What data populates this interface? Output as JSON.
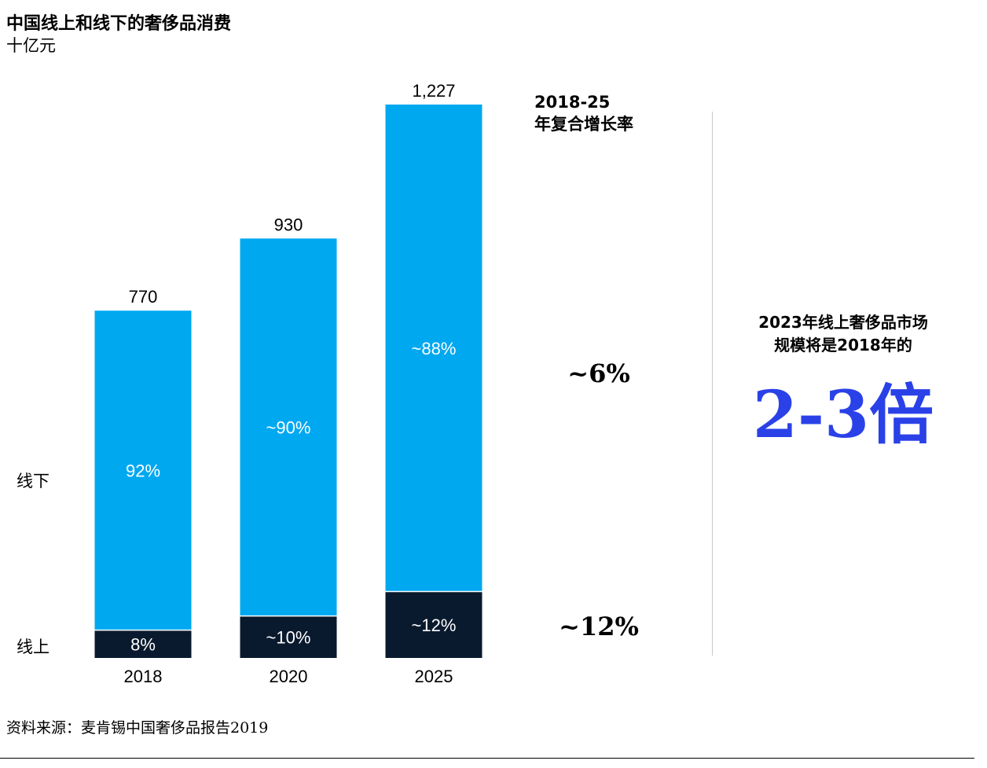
{
  "title": "中国线上和线下的奢侈品消费",
  "unit": "十亿元",
  "cagr": {
    "header_line1": "2018-25",
    "header_line2": "年复合增长率",
    "offline_value": "~6%",
    "online_value": "~12%"
  },
  "callout": {
    "line1": "2023年线上奢侈品市场",
    "line2": "规模将是2018年的",
    "big": "2-3倍",
    "color": "#2a41e8"
  },
  "source": "资料来源：麦肯锡中国奢侈品报告2019",
  "chart_data": {
    "type": "bar",
    "stacked": true,
    "categories": [
      "2018",
      "2020",
      "2025"
    ],
    "totals": [
      770,
      930,
      1227
    ],
    "total_labels": [
      "770",
      "930",
      "1,227"
    ],
    "series": [
      {
        "name": "线上",
        "share": [
          0.08,
          0.1,
          0.12
        ],
        "labels": [
          "8%",
          "~10%",
          "~12%"
        ],
        "color": "#0a1a2e"
      },
      {
        "name": "线下",
        "share": [
          0.92,
          0.9,
          0.88
        ],
        "labels": [
          "92%",
          "~90%",
          "~88%"
        ],
        "color": "#00a8f0"
      }
    ],
    "ylim": [
      0,
      1227
    ],
    "grid": false,
    "legend": "left"
  }
}
